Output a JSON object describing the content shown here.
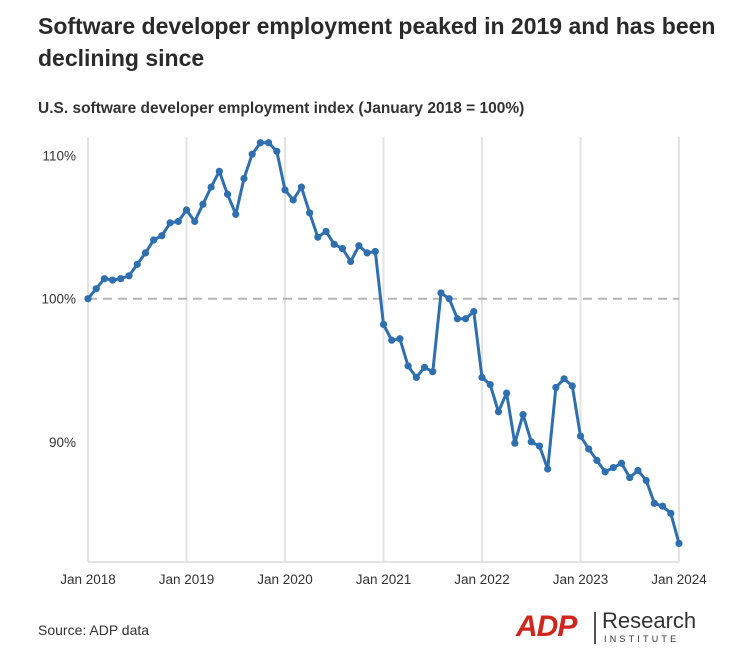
{
  "title": "Software developer employment peaked in 2019 and has been declining since",
  "source": "Source: ADP data",
  "logo": {
    "brand": "ADP",
    "name": "Research",
    "sub": "INSTITUTE"
  },
  "colors": {
    "line": "#2e6fb0",
    "reference": "#b5b5b5",
    "grid": "#e3e3e3",
    "brand_red": "#d0271d"
  },
  "chart_data": {
    "type": "line",
    "title": "U.S. software developer employment index (January 2018 = 100%)",
    "x_ticks": [
      "Jan 2018",
      "Jan 2019",
      "Jan 2020",
      "Jan 2021",
      "Jan 2022",
      "Jan 2023",
      "Jan 2024"
    ],
    "y_ticks": [
      "90%",
      "100%",
      "110%"
    ],
    "y_tick_values": [
      90,
      100,
      110
    ],
    "ylim": [
      81.6,
      111.3
    ],
    "reference_line": 100,
    "grid": "vertical",
    "series": [
      {
        "start": "Jan 2018",
        "frequency": "monthly",
        "values": [
          100.0,
          100.7,
          101.4,
          101.3,
          101.4,
          101.6,
          102.4,
          103.2,
          104.1,
          104.4,
          105.3,
          105.4,
          106.2,
          105.4,
          106.6,
          107.8,
          108.9,
          107.3,
          105.9,
          108.4,
          110.1,
          110.9,
          110.9,
          110.3,
          107.6,
          106.9,
          107.8,
          106.0,
          104.3,
          104.7,
          103.8,
          103.5,
          102.6,
          103.7,
          103.2,
          103.3,
          98.2,
          97.1,
          97.2,
          95.3,
          94.5,
          95.2,
          94.9,
          100.4,
          100.0,
          98.6,
          98.6,
          99.1,
          94.5,
          94.0,
          92.1,
          93.4,
          89.9,
          91.9,
          90.0,
          89.7,
          88.1,
          93.8,
          94.4,
          93.9,
          90.4,
          89.5,
          88.7,
          87.9,
          88.2,
          88.5,
          87.5,
          88.0,
          87.3,
          85.7,
          85.5,
          85.0,
          82.9
        ]
      }
    ]
  }
}
